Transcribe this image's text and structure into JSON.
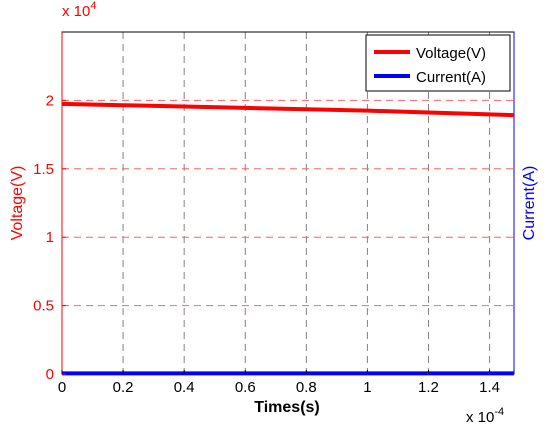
{
  "chart_data": {
    "type": "line",
    "x_multiplier_label": "x 10",
    "x_multiplier_exponent": "-4",
    "y_multiplier_label": "x 10",
    "y_multiplier_exponent": "4",
    "xlabel": "Times(s)",
    "ylabel_left": "Voltage(V)",
    "ylabel_right": "Current(A)",
    "xlim": [
      0,
      1.48
    ],
    "ylim_left": [
      0,
      2.5
    ],
    "x_ticks": [
      0,
      0.2,
      0.4,
      0.6,
      0.8,
      1.0,
      1.2,
      1.4
    ],
    "x_tick_labels": [
      "0",
      "0.2",
      "0.4",
      "0.6",
      "0.8",
      "1",
      "1.2",
      "1.4"
    ],
    "y_ticks": [
      0,
      0.5,
      1.0,
      1.5,
      2.0
    ],
    "y_tick_labels": [
      "0",
      "0.5",
      "1",
      "1.5",
      "2"
    ],
    "grid": true,
    "legend_position": "top-right",
    "series": [
      {
        "name": "Voltage(V)",
        "color": "#ff0000",
        "axis": "left",
        "x": [
          0,
          0.2,
          0.4,
          0.6,
          0.8,
          1.0,
          1.2,
          1.4,
          1.48
        ],
        "values": [
          1.975,
          1.965,
          1.955,
          1.945,
          1.935,
          1.925,
          1.912,
          1.898,
          1.892
        ]
      },
      {
        "name": "Current(A)",
        "color": "#0000ff",
        "axis": "right",
        "x": [
          0,
          1.48
        ],
        "values": [
          0.005,
          0.005
        ]
      }
    ]
  }
}
